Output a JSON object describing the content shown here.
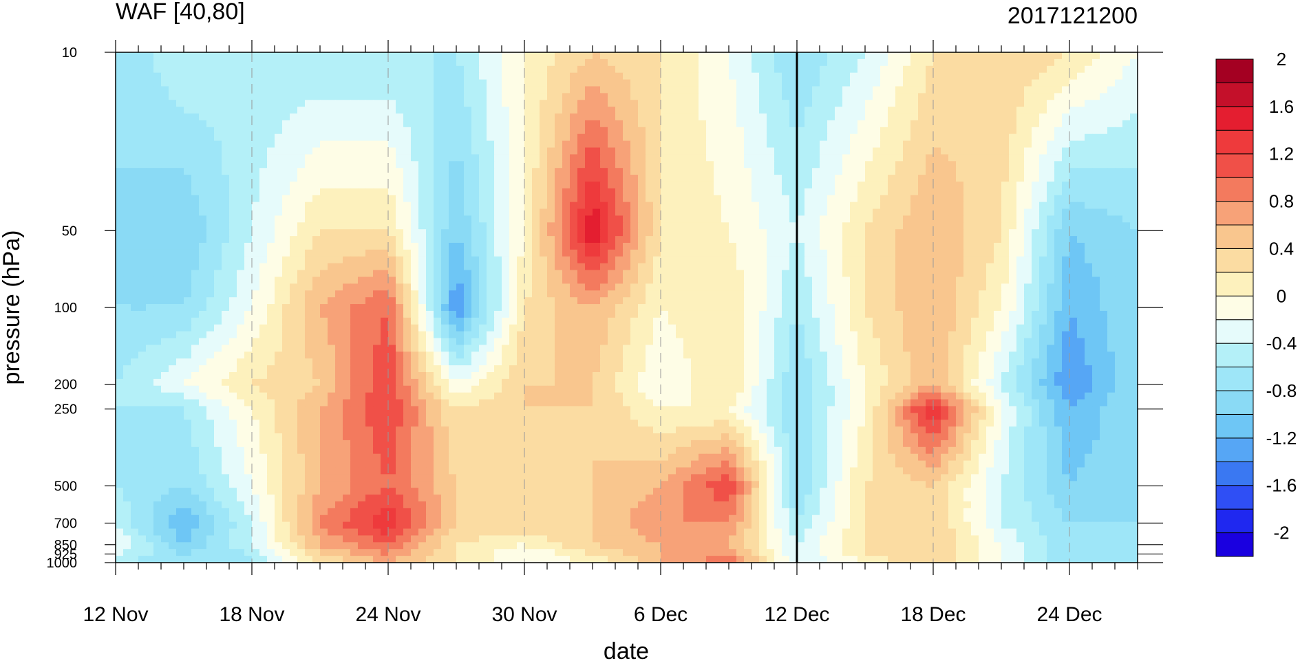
{
  "chart_data": {
    "type": "heatmap",
    "title_left": "WAF [40,80]",
    "title_right": "2017121200",
    "xlabel": "date",
    "ylabel": "pressure (hPa)",
    "x_axis": {
      "start": "12 Nov",
      "end": "27 Dec",
      "major_tick_labels": [
        "12 Nov",
        "18 Nov",
        "24 Nov",
        "30 Nov",
        "6 Dec",
        "12 Dec",
        "18 Dec",
        "24 Dec"
      ],
      "major_tick_days": [
        0,
        6,
        12,
        18,
        24,
        30,
        36,
        42
      ],
      "last_day": 45,
      "current_time": "12 Dec",
      "current_time_day": 30
    },
    "y_axis": {
      "scale": "log",
      "inverted": true,
      "range": [
        1000,
        10
      ],
      "ticks": [
        10,
        50,
        100,
        200,
        250,
        500,
        700,
        850,
        925,
        1000
      ],
      "tick_labels": [
        "10",
        "50",
        "100",
        "200",
        "250",
        "500",
        "700",
        "850",
        "925",
        "1000"
      ]
    },
    "colorbar": {
      "levels": [
        -2,
        -1.8,
        -1.6,
        -1.4,
        -1.2,
        -1.0,
        -0.8,
        -0.6,
        -0.4,
        -0.2,
        0,
        0.2,
        0.4,
        0.6,
        0.8,
        1.0,
        1.2,
        1.4,
        1.6,
        1.8,
        2
      ],
      "labels": [
        "-2",
        "-1.6",
        "-1.2",
        "-0.8",
        "-0.4",
        "0",
        "0.4",
        "0.8",
        "1.2",
        "1.6",
        "2"
      ],
      "colors": [
        "#1a00e0",
        "#1f28f0",
        "#2f4ff5",
        "#3a78f2",
        "#56a6f5",
        "#6ec6f5",
        "#8adaf5",
        "#9ee6f8",
        "#b4f0f8",
        "#e6fbfb",
        "#fefde6",
        "#fdf1bd",
        "#fbdca2",
        "#f9c68e",
        "#f7a278",
        "#f37a5e",
        "#f05048",
        "#ee3a3c",
        "#e41e30",
        "#c4102a",
        "#a40022"
      ]
    },
    "pressure_levels": [
      1000,
      925,
      850,
      700,
      500,
      250,
      200,
      100,
      50,
      10
    ],
    "days": [
      0,
      3,
      6,
      9,
      12,
      15,
      18,
      21,
      24,
      27,
      30,
      33,
      36,
      39,
      42,
      45
    ],
    "values": [
      [
        -0.4,
        -0.6,
        -0.4,
        0.4,
        0.8,
        0.4,
        0.0,
        0.2,
        0.8,
        1.2,
        -0.2,
        0.2,
        0.6,
        0.0,
        -0.6,
        -0.6
      ],
      [
        -0.2,
        -0.6,
        -0.4,
        0.6,
        1.0,
        0.4,
        0.0,
        0.4,
        0.8,
        1.0,
        -0.2,
        0.4,
        0.6,
        0.0,
        -0.6,
        -0.6
      ],
      [
        0.0,
        -0.8,
        -0.2,
        0.8,
        1.2,
        0.4,
        0.2,
        0.6,
        0.8,
        0.8,
        -0.2,
        0.4,
        0.6,
        0.0,
        -0.6,
        -0.6
      ],
      [
        -0.2,
        -1.0,
        -0.2,
        1.0,
        1.6,
        0.6,
        0.6,
        0.6,
        1.0,
        1.0,
        -0.4,
        0.4,
        0.6,
        -0.2,
        -0.6,
        -0.6
      ],
      [
        -0.4,
        -0.6,
        0.0,
        0.8,
        1.2,
        0.6,
        0.4,
        0.6,
        0.8,
        1.4,
        -0.6,
        0.4,
        0.6,
        -0.2,
        -0.8,
        -0.6
      ],
      [
        -0.4,
        -0.4,
        0.2,
        0.8,
        1.4,
        0.4,
        0.6,
        0.6,
        0.2,
        0.2,
        -0.6,
        0.2,
        1.6,
        0.0,
        -1.0,
        -0.6
      ],
      [
        -0.4,
        0.0,
        0.4,
        0.6,
        1.4,
        0.0,
        0.6,
        0.6,
        0.0,
        0.4,
        -0.6,
        0.2,
        0.8,
        -0.2,
        -1.2,
        -0.6
      ],
      [
        -0.6,
        -0.6,
        0.0,
        0.8,
        1.2,
        -1.2,
        0.4,
        0.8,
        0.2,
        0.4,
        -0.4,
        0.4,
        0.8,
        0.2,
        -1.0,
        -0.6
      ],
      [
        -0.6,
        -0.8,
        -0.2,
        0.4,
        0.4,
        -0.8,
        0.2,
        1.8,
        0.4,
        0.2,
        -0.2,
        0.4,
        0.8,
        0.4,
        -0.8,
        -0.6
      ],
      [
        -0.6,
        -0.2,
        -0.4,
        -0.4,
        -0.4,
        -0.4,
        0.2,
        0.6,
        0.4,
        0.0,
        -0.6,
        -0.2,
        0.4,
        0.6,
        0.4,
        0.0
      ]
    ]
  }
}
